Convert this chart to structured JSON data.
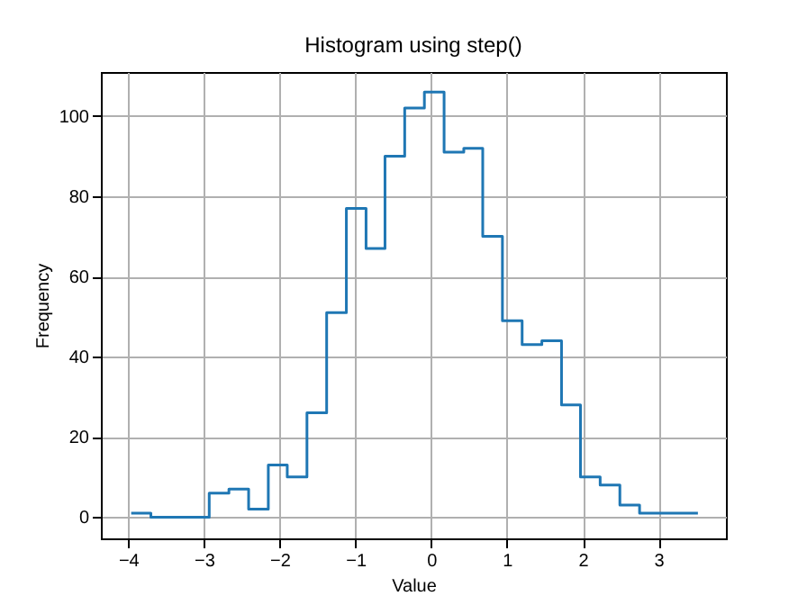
{
  "chart_data": {
    "type": "histogram",
    "title": "Histogram using step()",
    "xlabel": "Value",
    "ylabel": "Frequency",
    "bins": [
      -3.96,
      -3.7,
      -3.44,
      -3.19,
      -2.93,
      -2.67,
      -2.41,
      -2.15,
      -1.9,
      -1.64,
      -1.38,
      -1.12,
      -0.86,
      -0.61,
      -0.35,
      -0.09,
      0.17,
      0.43,
      0.68,
      0.94,
      1.2,
      1.46,
      1.72,
      1.97,
      2.23,
      2.49,
      2.75,
      3.01,
      3.26,
      3.52
    ],
    "values": [
      1,
      0,
      0,
      0,
      6,
      7,
      2,
      13,
      10,
      26,
      51,
      77,
      67,
      90,
      102,
      106,
      91,
      92,
      70,
      49,
      43,
      44,
      28,
      10,
      8,
      3,
      1,
      1,
      1
    ],
    "color": "#1f77b4",
    "xlim": [
      -4.36,
      3.89
    ],
    "xticks": [
      -4,
      -3,
      -2,
      -1,
      0,
      1,
      2,
      3
    ],
    "ylim": [
      -5.3,
      111
    ],
    "yticks": [
      0,
      20,
      40,
      60,
      80,
      100
    ],
    "grid": true
  }
}
